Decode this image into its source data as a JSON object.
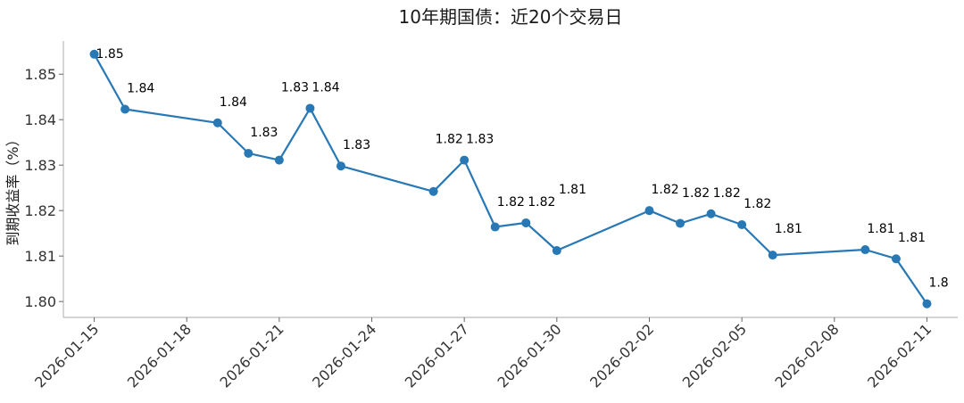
{
  "chart_data": {
    "type": "line",
    "title": "10年期国债：近20个交易日",
    "xlabel": "",
    "ylabel": "到期收益率（%）",
    "ylim": [
      1.7965,
      1.8573
    ],
    "yticks": [
      "1.80",
      "1.81",
      "1.82",
      "1.83",
      "1.84",
      "1.85"
    ],
    "xlim": [
      "2026-01-14",
      "2026-02-12"
    ],
    "xticks": [
      "2026-01-15",
      "2026-01-18",
      "2026-01-21",
      "2026-01-24",
      "2026-01-27",
      "2026-01-30",
      "2026-02-02",
      "2026-02-05",
      "2026-02-08",
      "2026-02-11"
    ],
    "grid": false,
    "color": "#2878b5",
    "x": [
      "2026-01-15",
      "2026-01-16",
      "2026-01-19",
      "2026-01-20",
      "2026-01-21",
      "2026-01-22",
      "2026-01-23",
      "2026-01-26",
      "2026-01-27",
      "2026-01-28",
      "2026-01-29",
      "2026-01-30",
      "2026-02-02",
      "2026-02-03",
      "2026-02-04",
      "2026-02-05",
      "2026-02-06",
      "2026-02-09",
      "2026-02-10",
      "2026-02-11"
    ],
    "values": [
      1.8544,
      1.8423,
      1.8393,
      1.8326,
      1.8311,
      1.8425,
      1.8298,
      1.8242,
      1.8311,
      1.8164,
      1.8173,
      1.8112,
      1.82,
      1.8172,
      1.8193,
      1.8169,
      1.8102,
      1.8114,
      1.8094,
      1.7995
    ],
    "labels": [
      "1.85",
      "1.84",
      "1.84",
      "1.83",
      "1.83",
      "1.84",
      "1.83",
      "1.82",
      "1.83",
      "1.82",
      "1.82",
      "1.81",
      "1.82",
      "1.82",
      "1.82",
      "1.82",
      "1.81",
      "1.81",
      "1.81",
      "1.8"
    ]
  }
}
